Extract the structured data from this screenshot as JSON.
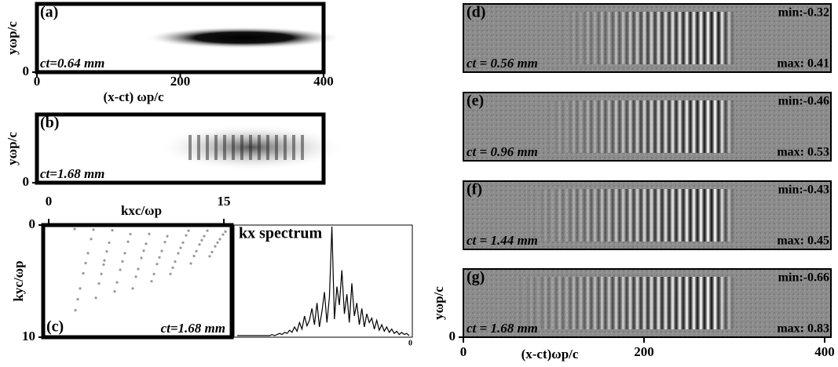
{
  "panels": [
    {
      "label": "(a)",
      "time": "ct=0.64 mm",
      "ylabel": "yωp/c",
      "ylim": [
        0,
        10
      ],
      "yticks": [
        0
      ],
      "xlabel": "(x-ct) ωp/c",
      "xlim": [
        0,
        400
      ],
      "xticks": [
        0,
        200,
        400
      ]
    },
    {
      "label": "(b)",
      "time": "ct=1.68 mm",
      "ylabel": "yωp/c",
      "ylim": [
        0,
        10
      ],
      "yticks": [
        0
      ]
    },
    {
      "label": "(c)",
      "time": "ct=1.68 mm",
      "ylabel": "kyc/ωp",
      "ylim": [
        0,
        10
      ],
      "yticks": [
        0,
        10
      ],
      "xlabel": "kxc/ωp",
      "xlim": [
        0,
        15
      ],
      "xticks": [
        0,
        15
      ]
    },
    {
      "title": "kx spectrum",
      "xticks": [
        0
      ],
      "values": [
        0,
        0,
        0,
        0,
        0,
        0,
        0,
        0,
        0,
        0,
        0,
        0,
        0,
        0,
        1,
        0,
        1,
        2,
        1,
        3,
        2,
        5,
        3,
        8,
        4,
        12,
        6,
        18,
        9,
        14,
        25,
        10,
        30,
        8,
        22,
        40,
        12,
        35,
        100,
        15,
        45,
        28,
        60,
        20,
        38,
        12,
        48,
        18,
        30,
        10,
        25,
        8,
        20,
        12,
        16,
        6,
        14,
        5,
        10,
        4,
        8,
        3,
        6,
        2,
        4,
        1,
        3,
        1,
        2,
        0
      ]
    },
    {
      "label": "(d)",
      "time": "ct = 0.56 mm",
      "min": "min:-0.32",
      "max": "max: 0.41"
    },
    {
      "label": "(e)",
      "time": "ct = 0.96 mm",
      "min": "min:-0.46",
      "max": "max: 0.53"
    },
    {
      "label": "(f)",
      "time": "ct = 1.44 mm",
      "min": "min:-0.43",
      "max": "max: 0.45"
    },
    {
      "label": "(g)",
      "time": "ct = 1.68 mm",
      "min": "min:-0.66",
      "max": "max: 0.83",
      "ylabel": "yωp/c",
      "ylim": [
        0,
        10
      ],
      "yticks": [
        0
      ],
      "xlabel": "(x-ct)ωp/c",
      "xlim": [
        0,
        400
      ],
      "xticks": [
        0,
        200,
        400
      ]
    }
  ]
}
